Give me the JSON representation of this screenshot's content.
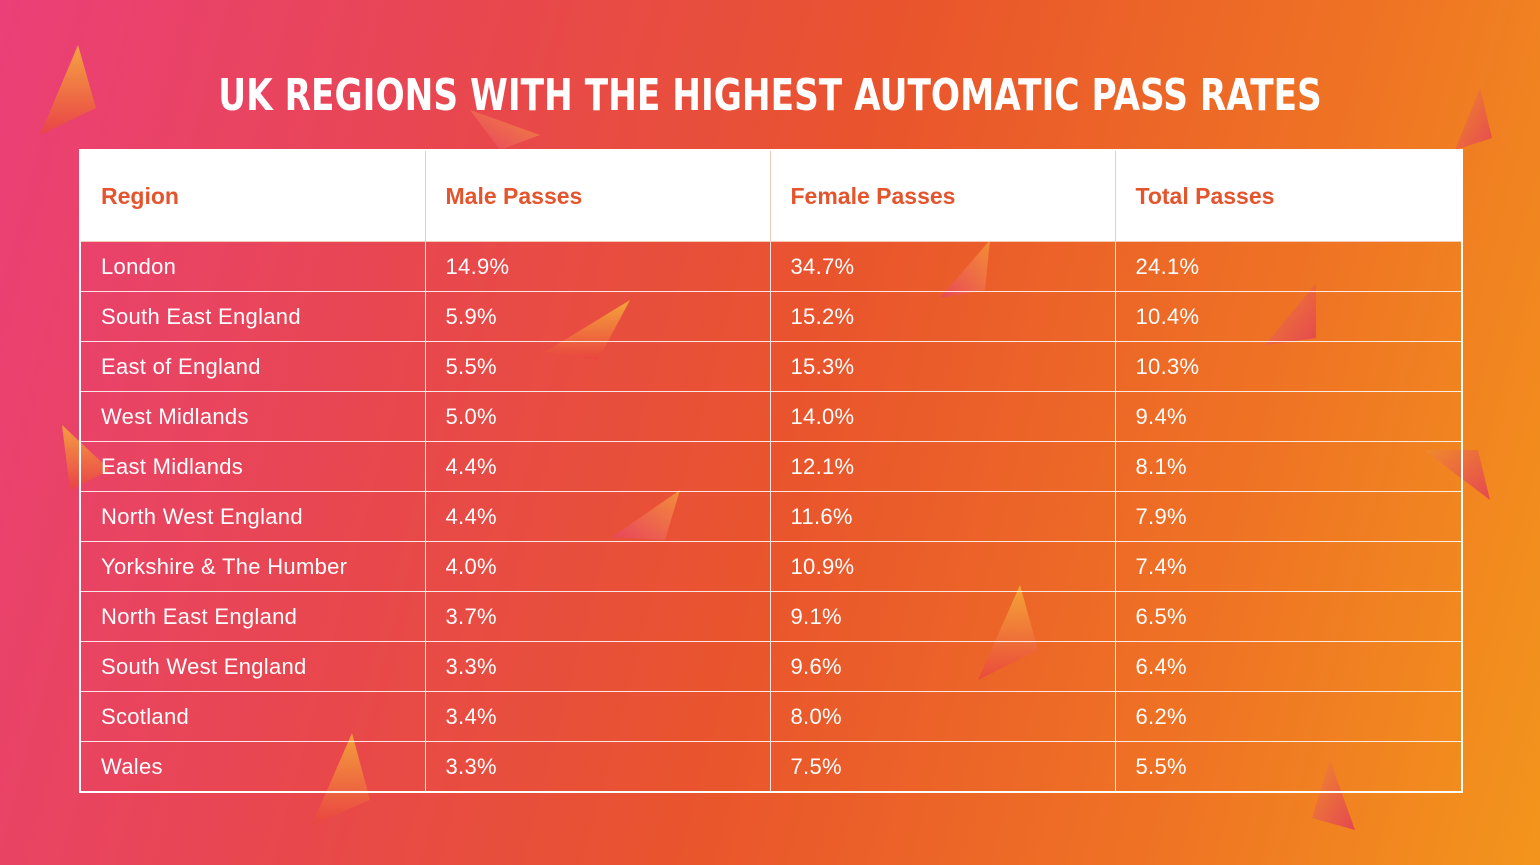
{
  "chart_data": {
    "type": "table",
    "title": "UK REGIONS WITH THE HIGHEST AUTOMATIC PASS RATES",
    "columns": [
      "Region",
      "Male Passes",
      "Female Passes",
      "Total Passes"
    ],
    "rows": [
      [
        "London",
        "14.9%",
        "34.7%",
        "24.1%"
      ],
      [
        "South East England",
        "5.9%",
        "15.2%",
        "10.4%"
      ],
      [
        "East of England",
        "5.5%",
        "15.3%",
        "10.3%"
      ],
      [
        "West Midlands",
        "5.0%",
        "14.0%",
        "9.4%"
      ],
      [
        "East Midlands",
        "4.4%",
        "12.1%",
        "8.1%"
      ],
      [
        "North West England",
        "4.4%",
        "11.6%",
        "7.9%"
      ],
      [
        "Yorkshire & The Humber",
        "4.0%",
        "10.9%",
        "7.4%"
      ],
      [
        "North East England",
        "3.7%",
        "9.1%",
        "6.5%"
      ],
      [
        "South West England",
        "3.3%",
        "9.6%",
        "6.4%"
      ],
      [
        "Scotland",
        "3.4%",
        "8.0%",
        "6.2%"
      ],
      [
        "Wales",
        "3.3%",
        "7.5%",
        "5.5%"
      ]
    ]
  },
  "colors": {
    "header_text": "#e4542d",
    "header_background": "#ffffff",
    "body_text": "#ffffff",
    "gradient_start": "#ea3f78",
    "gradient_end": "#f3951c"
  }
}
